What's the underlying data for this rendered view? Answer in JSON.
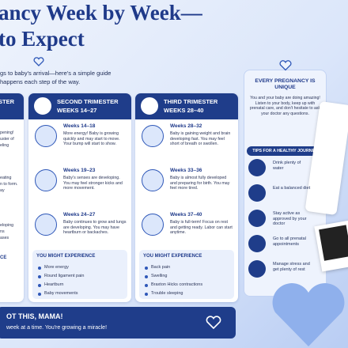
{
  "header": {
    "title_line1": "ancy Week by Week—",
    "title_line2": "to Expect",
    "subtitle_line1": "gs to baby's arrival—here's a simple guide",
    "subtitle_line2": "happens each step of the way."
  },
  "first_column_fragments": {
    "heading": "STER",
    "texts": [
      "pening!",
      "uster of",
      "eling",
      "eating",
      "n to form.",
      "ay",
      "eloping",
      "ns",
      "ases"
    ],
    "experience": "CE"
  },
  "columns": [
    {
      "title": "SECOND TRIMESTER",
      "weeks": "WEEKS 14–27",
      "entries": [
        {
          "label": "Weeks 14–18",
          "text": "More energy! Baby is growing quickly and may start to move. Your bump will start to show."
        },
        {
          "label": "Weeks 19–23",
          "text": "Baby's senses are developing. You may feel stronger kicks and more movement."
        },
        {
          "label": "Weeks 24–27",
          "text": "Baby continues to grow and lungs are developing. You may have heartburn or backaches."
        }
      ],
      "experience_title": "YOU MIGHT EXPERIENCE",
      "experience": [
        "More energy",
        "Round ligament pain",
        "Heartburn",
        "Baby movements"
      ]
    },
    {
      "title": "THIRD TRIMESTER",
      "weeks": "WEEKS 28–40",
      "entries": [
        {
          "label": "Weeks 28–32",
          "text": "Baby is gaining weight and brain developing fast. You may feel short of breath or swollen."
        },
        {
          "label": "Weeks 33–36",
          "text": "Baby is almost fully developed and preparing for birth. You may feel more tired."
        },
        {
          "label": "Weeks 37–40",
          "text": "Baby is full-term! Focus on rest and getting ready. Labor can start anytime."
        }
      ],
      "experience_title": "YOU MIGHT EXPERIENCE",
      "experience": [
        "Back pain",
        "Swelling",
        "Braxton Hicks contractions",
        "Trouble sleeping"
      ]
    }
  ],
  "side_card": {
    "title": "EVERY PREGNANCY IS UNIQUE",
    "text": "You and your baby are doing amazing! Listen to your body, keep up with prenatal care, and don't hesitate to ask your doctor any questions.",
    "tips_title": "TIPS FOR A HEALTHY JOURNEY",
    "tips": [
      "Drink plenty of water",
      "Eat a balanced diet",
      "Stay active as approved by your doctor",
      "Go to all prenatal appointments",
      "Manage stress and get plenty of rest"
    ]
  },
  "banner": {
    "title": "OT THIS, MAMA!",
    "text": "week at a time. You're growing a miracle!"
  }
}
